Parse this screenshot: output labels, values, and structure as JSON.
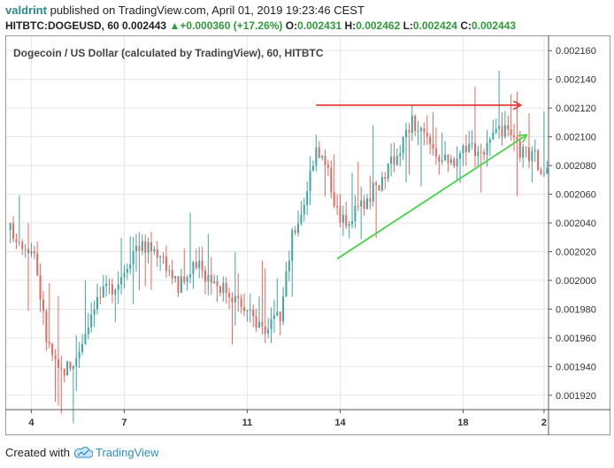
{
  "header": {
    "user": "valdrint",
    "published": "published on TradingView.com, April 01, 2019 19:23:46 CEST",
    "symbol": "HITBTC:DOGEUSD, 60",
    "last": "0.002443",
    "change_arrow": "▲",
    "change": "+0.000360 (+17.26%)",
    "o_label": "O:",
    "o": "0.002431",
    "h_label": "H:",
    "h": "0.002462",
    "l_label": "L:",
    "l": "0.002424",
    "c_label": "C:",
    "c": "0.002443"
  },
  "footer": {
    "created_with": "Created with",
    "brand": "TradingView",
    "logo_icon": "tradingview-cloud-icon"
  },
  "colors": {
    "bull": "#3ea5a1",
    "bear": "#e8675e",
    "resistance": "#e53935",
    "support": "#46d446",
    "grid": "#e6e6e6",
    "axis": "#555555"
  },
  "chart_data": {
    "type": "candlestick",
    "title": "Dogecoin / US Dollar (calculated by TradingView), 60, HITBTC",
    "x_ticks": [
      {
        "label": "4",
        "index": 7
      },
      {
        "label": "7",
        "index": 38
      },
      {
        "label": "11",
        "index": 79
      },
      {
        "label": "14",
        "index": 110
      },
      {
        "label": "18",
        "index": 151
      },
      {
        "label": "2",
        "index": 178
      }
    ],
    "y_ticks": [
      "0.002160",
      "0.002140",
      "0.002120",
      "0.002100",
      "0.002080",
      "0.002060",
      "0.002040",
      "0.002020",
      "0.002000",
      "0.001980",
      "0.001960",
      "0.001940",
      "0.001920"
    ],
    "ylim": [
      0.00191,
      0.00217
    ],
    "candle_count": 180,
    "price_path": [
      [
        0,
        0.002035
      ],
      [
        8,
        0.00202
      ],
      [
        12,
        0.00196
      ],
      [
        16,
        0.001935
      ],
      [
        22,
        0.001945
      ],
      [
        28,
        0.001985
      ],
      [
        36,
        0.002
      ],
      [
        42,
        0.002025
      ],
      [
        50,
        0.00202
      ],
      [
        56,
        0.001995
      ],
      [
        62,
        0.00201
      ],
      [
        68,
        0.002
      ],
      [
        74,
        0.00199
      ],
      [
        80,
        0.001975
      ],
      [
        86,
        0.001965
      ],
      [
        90,
        0.001975
      ],
      [
        94,
        0.00203
      ],
      [
        98,
        0.002055
      ],
      [
        102,
        0.002095
      ],
      [
        106,
        0.002075
      ],
      [
        110,
        0.00204
      ],
      [
        116,
        0.00205
      ],
      [
        122,
        0.002065
      ],
      [
        128,
        0.002085
      ],
      [
        134,
        0.00211
      ],
      [
        140,
        0.002095
      ],
      [
        146,
        0.00208
      ],
      [
        152,
        0.002095
      ],
      [
        158,
        0.00209
      ],
      [
        164,
        0.002105
      ],
      [
        170,
        0.00209
      ],
      [
        175,
        0.002085
      ],
      [
        179,
        0.002075
      ]
    ],
    "lines": [
      {
        "name": "resistance",
        "x1": 102,
        "y1": 0.002122,
        "x2": 170,
        "y2": 0.002122,
        "arrow": true
      },
      {
        "name": "support",
        "x1": 109,
        "y1": 0.002015,
        "x2": 172,
        "y2": 0.002101,
        "arrow": true
      }
    ]
  }
}
